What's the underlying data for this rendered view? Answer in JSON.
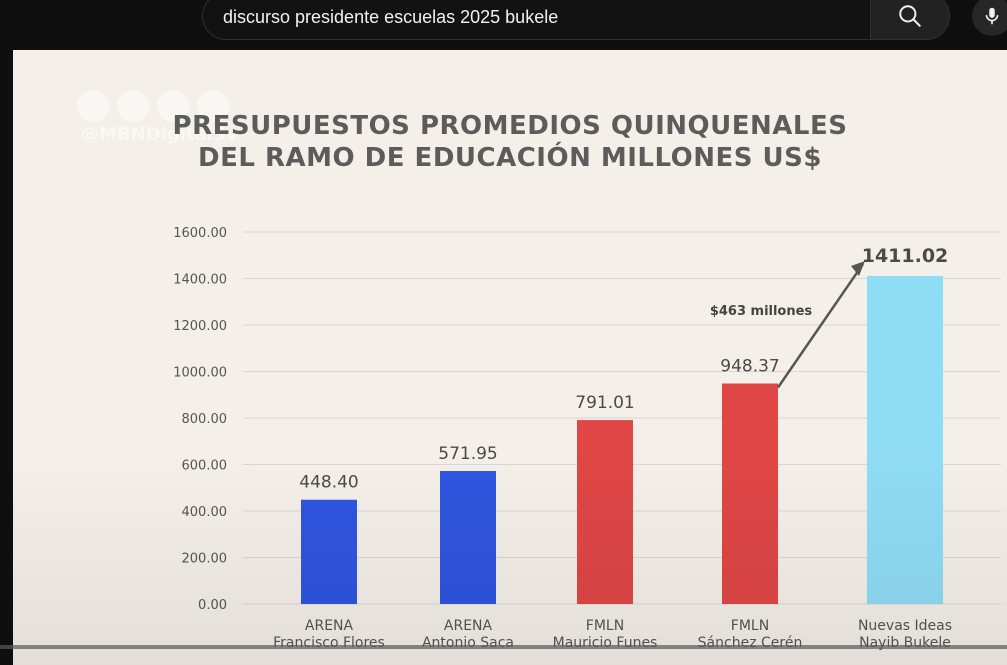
{
  "search": {
    "query": "discurso presidente escuelas 2025 bukele",
    "search_icon": "search-icon",
    "mic_icon": "mic-icon"
  },
  "watermark": {
    "handle": "@MBNDigitalSv",
    "icons": [
      "x-icon",
      "globe-icon",
      "facebook-icon",
      "youtube-icon"
    ]
  },
  "chart_data": {
    "type": "bar",
    "title": "PRESUPUESTOS PROMEDIOS QUINQUENALES",
    "subtitle": "DEL RAMO DE EDUCACIÓN MILLONES US$",
    "categories": [
      {
        "party": "ARENA",
        "name": "Francisco Flores"
      },
      {
        "party": "ARENA",
        "name": "Antonio Saca"
      },
      {
        "party": "FMLN",
        "name": "Mauricio Funes"
      },
      {
        "party": "FMLN",
        "name": "Sánchez Cerén"
      },
      {
        "party": "Nuevas Ideas",
        "name": "Nayib Bukele"
      }
    ],
    "values": [
      448.4,
      571.95,
      791.01,
      948.37,
      1411.02
    ],
    "value_labels": [
      "448.40",
      "571.95",
      "791.01",
      "948.37",
      "1411.02"
    ],
    "colors": [
      "#2f55e0",
      "#2f55e0",
      "#e04646",
      "#e04646",
      "#8fdcf5"
    ],
    "ylim": [
      0,
      1600
    ],
    "yticks": [
      "0.00",
      "200.00",
      "400.00",
      "600.00",
      "800.00",
      "1000.00",
      "1200.00",
      "1400.00",
      "1600.00"
    ],
    "grid": true,
    "annotation": "$463 millones"
  }
}
